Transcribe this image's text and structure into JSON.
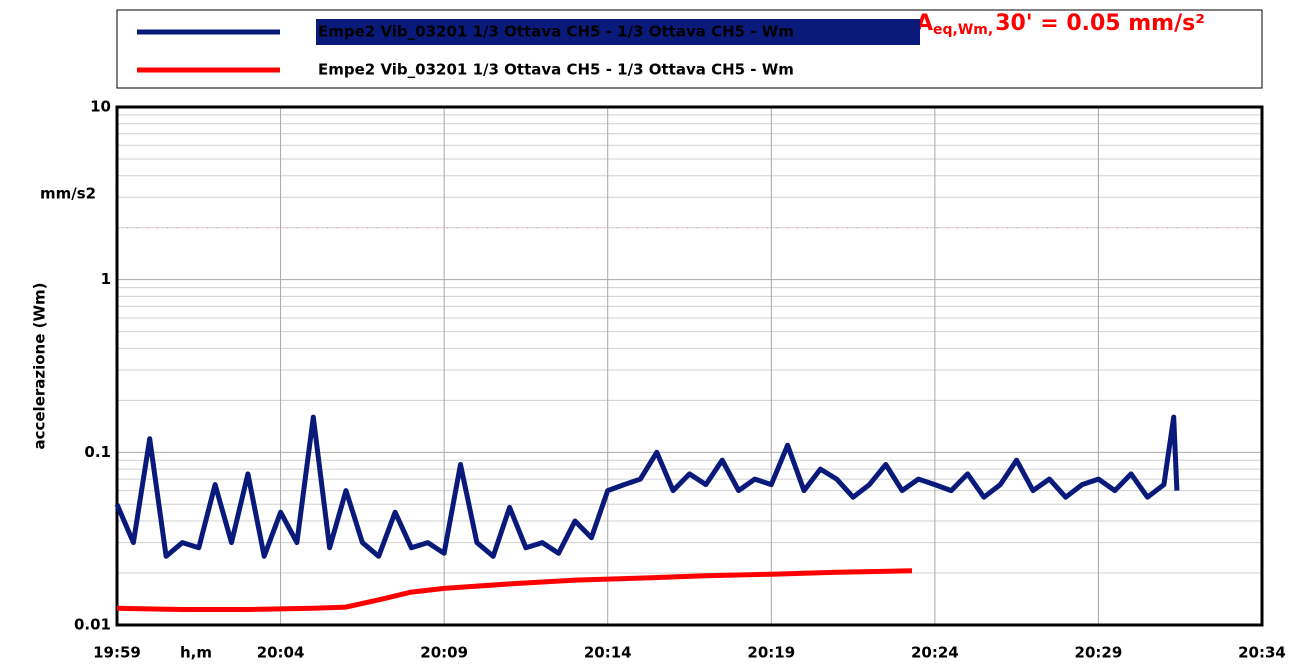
{
  "chart_data": {
    "type": "line",
    "y_label": "accelerazione (Wm)",
    "y_unit": "mm/s2",
    "x_label": "h,m",
    "annotation": {
      "symbol": "A",
      "subscript": "eq,Wm,",
      "text": "30' = 0.05 mm/s²",
      "color": "#ff0000"
    },
    "log_y": true,
    "grid": true,
    "reference_line": {
      "value": 2,
      "color": "#f4a0b0"
    },
    "xlim": [
      1199,
      1234
    ],
    "xticks": [
      {
        "value": 1199,
        "label": "19:59"
      },
      {
        "value": 1204,
        "label": "20:04"
      },
      {
        "value": 1209,
        "label": "20:09"
      },
      {
        "value": 1214,
        "label": "20:14"
      },
      {
        "value": 1219,
        "label": "20:19"
      },
      {
        "value": 1224,
        "label": "20:24"
      },
      {
        "value": 1229,
        "label": "20:29"
      },
      {
        "value": 1234,
        "label": "20:34"
      }
    ],
    "ylim": [
      0.01,
      10
    ],
    "yticks": [
      0.01,
      0.1,
      1,
      10
    ],
    "series": [
      {
        "name": "Empe2 Vib_03201 1/3 Ottava CH5 - 1/3 Ottava CH5 - Wm",
        "color": "#0a1a7a",
        "x": [
          1199,
          1199.5,
          1200,
          1200.5,
          1201,
          1201.5,
          1202,
          1202.5,
          1203,
          1203.5,
          1204,
          1204.5,
          1205,
          1205.5,
          1206,
          1206.5,
          1207,
          1207.5,
          1208,
          1208.5,
          1209,
          1209.5,
          1210,
          1210.5,
          1211,
          1211.5,
          1212,
          1212.5,
          1213,
          1213.5,
          1214,
          1214.5,
          1215,
          1215.5,
          1216,
          1216.5,
          1217,
          1217.5,
          1218,
          1218.5,
          1219,
          1219.5,
          1220,
          1220.5,
          1221,
          1221.5,
          1222,
          1222.5,
          1223,
          1223.5,
          1224,
          1224.5,
          1225,
          1225.5,
          1226,
          1226.5,
          1227,
          1227.5,
          1228,
          1228.5,
          1229,
          1229.5,
          1230,
          1230.5,
          1231,
          1231.3,
          1231.4
        ],
        "values": [
          0.05,
          0.03,
          0.12,
          0.025,
          0.03,
          0.028,
          0.065,
          0.03,
          0.075,
          0.025,
          0.045,
          0.03,
          0.16,
          0.028,
          0.06,
          0.03,
          0.025,
          0.045,
          0.028,
          0.03,
          0.026,
          0.085,
          0.03,
          0.025,
          0.048,
          0.028,
          0.03,
          0.026,
          0.04,
          0.032,
          0.06,
          0.065,
          0.07,
          0.1,
          0.06,
          0.075,
          0.065,
          0.09,
          0.06,
          0.07,
          0.065,
          0.11,
          0.06,
          0.08,
          0.07,
          0.055,
          0.065,
          0.085,
          0.06,
          0.07,
          0.065,
          0.06,
          0.075,
          0.055,
          0.065,
          0.09,
          0.06,
          0.07,
          0.055,
          0.065,
          0.07,
          0.06,
          0.075,
          0.055,
          0.065,
          0.16,
          0.06
        ]
      },
      {
        "name": "Empe2 Vib_03201 1/3 Ottava CH5 - 1/3 Ottava CH5 - Wm",
        "color": "#ff0000",
        "x": [
          1199,
          1201,
          1203,
          1205,
          1206,
          1207,
          1208,
          1209,
          1211,
          1213,
          1215,
          1217,
          1219,
          1221,
          1223.3
        ],
        "values": [
          0.0125,
          0.0123,
          0.0123,
          0.0125,
          0.0127,
          0.014,
          0.0155,
          0.0163,
          0.0173,
          0.0182,
          0.0187,
          0.0193,
          0.0197,
          0.0202,
          0.0206
        ]
      }
    ]
  }
}
